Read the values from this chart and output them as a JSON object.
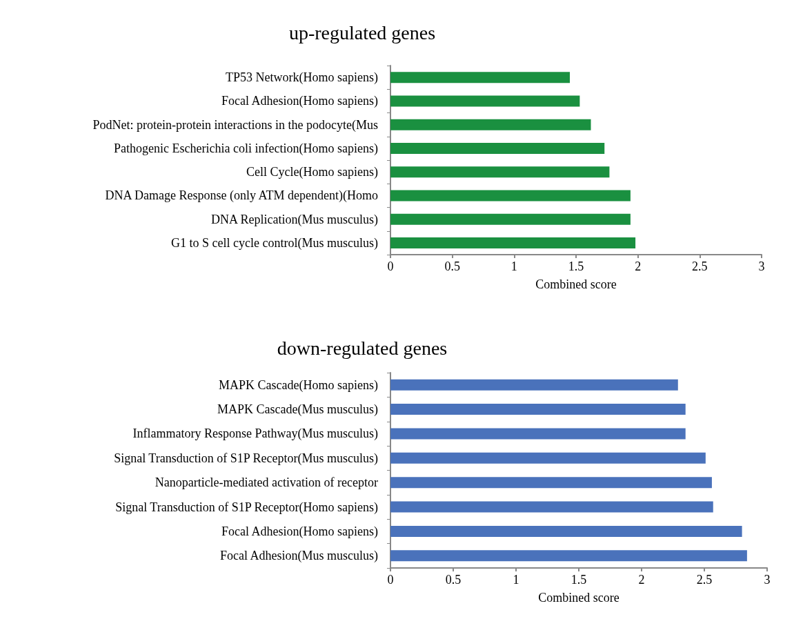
{
  "chart_data": [
    {
      "type": "bar",
      "orientation": "horizontal",
      "title": "up-regulated genes",
      "xlabel": "Combined score",
      "categories": [
        "TP53 Network(Homo sapiens)",
        "Focal Adhesion(Homo sapiens)",
        "PodNet: protein-protein interactions in the podocyte(Mus",
        "Pathogenic Escherichia coli infection(Homo sapiens)",
        "Cell Cycle(Homo sapiens)",
        "DNA Damage Response (only ATM dependent)(Homo",
        "DNA Replication(Mus musculus)",
        "G1 to S cell cycle control(Mus musculus)"
      ],
      "values": [
        1.45,
        1.53,
        1.62,
        1.73,
        1.77,
        1.94,
        1.94,
        1.98
      ],
      "color": "#1a9040",
      "xlim": [
        0,
        3
      ],
      "xticks": [
        0,
        0.5,
        1,
        1.5,
        2,
        2.5,
        3
      ],
      "grid": false
    },
    {
      "type": "bar",
      "orientation": "horizontal",
      "title": "down-regulated genes",
      "xlabel": "Combined score",
      "categories": [
        "MAPK Cascade(Homo sapiens)",
        "MAPK Cascade(Mus musculus)",
        "Inflammatory Response Pathway(Mus musculus)",
        "Signal Transduction of S1P Receptor(Mus musculus)",
        "Nanoparticle-mediated activation of receptor",
        "Signal Transduction of S1P Receptor(Homo sapiens)",
        "Focal Adhesion(Homo sapiens)",
        "Focal Adhesion(Mus musculus)"
      ],
      "values": [
        2.29,
        2.35,
        2.35,
        2.51,
        2.56,
        2.57,
        2.8,
        2.84
      ],
      "color": "#4a72bb",
      "xlim": [
        0,
        3
      ],
      "xticks": [
        0,
        0.5,
        1,
        1.5,
        2,
        2.5,
        3
      ],
      "grid": false
    }
  ]
}
